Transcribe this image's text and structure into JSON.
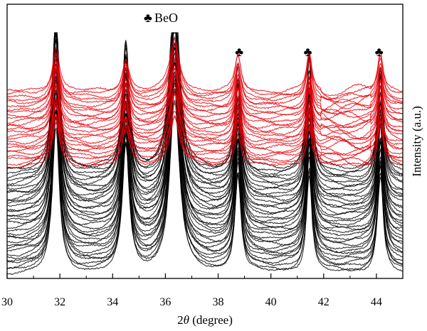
{
  "chart_data": {
    "type": "line",
    "xlabel_prefix": "2",
    "xlabel_var": "θ",
    "xlabel_suffix": " (degree)",
    "ylabel": "Intensity (a.u.)",
    "xlim": [
      30,
      45
    ],
    "x_ticks": [
      30,
      32,
      34,
      36,
      38,
      40,
      42,
      44
    ],
    "grid": false,
    "legend": {
      "symbol": "♣",
      "label": "BeO",
      "placement": "top-center"
    },
    "peak_markers": [
      38.8,
      41.4,
      44.1
    ],
    "peaks": [
      31.85,
      34.5,
      36.35,
      38.75,
      41.45,
      44.15
    ],
    "series_groups": [
      {
        "color": "#000000",
        "count": 36
      },
      {
        "color": "#e8000b",
        "count": 26
      }
    ]
  }
}
